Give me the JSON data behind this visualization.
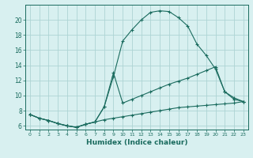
{
  "line1_x": [
    0,
    1,
    2,
    3,
    4,
    5,
    6,
    7,
    8,
    9,
    10,
    11,
    12,
    13,
    14,
    15,
    16,
    17,
    18,
    19,
    20,
    21,
    22,
    23
  ],
  "line1_y": [
    7.5,
    7.0,
    6.7,
    6.3,
    6.0,
    5.8,
    6.2,
    6.5,
    8.5,
    12.5,
    17.2,
    18.7,
    20.0,
    21.0,
    21.2,
    21.1,
    20.3,
    19.2,
    16.8,
    15.3,
    13.5,
    10.5,
    9.5,
    9.2
  ],
  "line2_x": [
    0,
    1,
    2,
    3,
    4,
    5,
    6,
    7,
    8,
    9,
    10,
    11,
    12,
    13,
    14,
    15,
    16,
    17,
    18,
    19,
    20,
    21,
    22,
    23
  ],
  "line2_y": [
    7.5,
    7.0,
    6.7,
    6.3,
    6.0,
    5.8,
    6.2,
    6.5,
    8.5,
    13.0,
    9.0,
    9.5,
    10.0,
    10.5,
    11.0,
    11.5,
    11.9,
    12.3,
    12.8,
    13.3,
    13.8,
    10.5,
    9.7,
    9.2
  ],
  "line3_x": [
    0,
    1,
    2,
    3,
    4,
    5,
    6,
    7,
    8,
    9,
    10,
    11,
    12,
    13,
    14,
    15,
    16,
    17,
    18,
    19,
    20,
    21,
    22,
    23
  ],
  "line3_y": [
    7.5,
    7.0,
    6.7,
    6.3,
    6.0,
    5.8,
    6.2,
    6.5,
    6.8,
    7.0,
    7.2,
    7.4,
    7.6,
    7.8,
    8.0,
    8.2,
    8.4,
    8.5,
    8.6,
    8.7,
    8.8,
    8.9,
    9.0,
    9.2
  ],
  "line_color": "#1a6b5e",
  "bg_color": "#d8f0f0",
  "grid_color": "#aed4d4",
  "xlabel": "Humidex (Indice chaleur)",
  "xlim": [
    -0.5,
    23.5
  ],
  "ylim": [
    5.5,
    22
  ],
  "xticks": [
    0,
    1,
    2,
    3,
    4,
    5,
    6,
    7,
    8,
    9,
    10,
    11,
    12,
    13,
    14,
    15,
    16,
    17,
    18,
    19,
    20,
    21,
    22,
    23
  ],
  "yticks": [
    6,
    8,
    10,
    12,
    14,
    16,
    18,
    20
  ]
}
